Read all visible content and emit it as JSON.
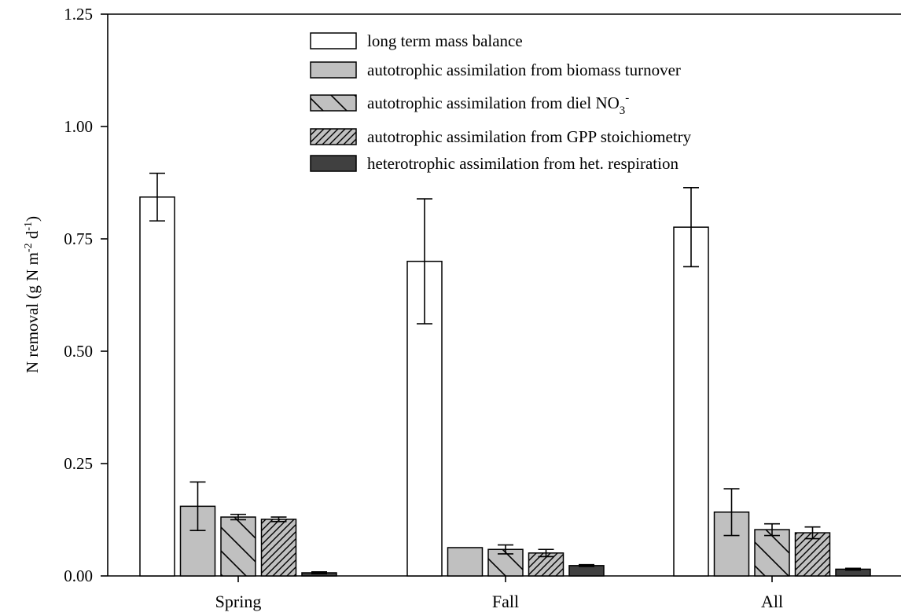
{
  "chart_data": {
    "type": "bar",
    "title": "",
    "xlabel": "",
    "ylabel": "N removal (g N m-2 d-1)",
    "ylim": [
      0,
      1.25
    ],
    "yticks": [
      "0.00",
      "0.25",
      "0.50",
      "0.75",
      "1.00",
      "1.25"
    ],
    "categories": [
      "Spring",
      "Fall",
      "All"
    ],
    "legend_position": "top-center",
    "grid": false,
    "series": [
      {
        "name": "long term mass balance",
        "fill": "#ffffff",
        "pattern": "none",
        "values": [
          0.843,
          0.7,
          0.776
        ],
        "errors": [
          0.053,
          0.139,
          0.088
        ]
      },
      {
        "name": "autotrophic assimilation from biomass turnover",
        "fill": "#c0c0c0",
        "pattern": "none",
        "values": [
          0.155,
          0.063,
          0.142
        ],
        "errors": [
          0.054,
          0.0,
          0.052
        ]
      },
      {
        "name": "autotrophic assimilation from diel NO3-",
        "fill": "#c0c0c0",
        "pattern": "back-diagonal",
        "values": [
          0.131,
          0.059,
          0.103
        ],
        "errors": [
          0.006,
          0.01,
          0.013
        ]
      },
      {
        "name": "autotrophic assimilation from GPP stoichiometry",
        "fill": "#c0c0c0",
        "pattern": "forward-diagonal",
        "values": [
          0.126,
          0.051,
          0.096
        ],
        "errors": [
          0.005,
          0.008,
          0.013
        ]
      },
      {
        "name": "heterotrophic assimilation from het. respiration",
        "fill": "#404040",
        "pattern": "none",
        "values": [
          0.007,
          0.023,
          0.015
        ],
        "errors": [
          0.002,
          0.002,
          0.002
        ]
      }
    ]
  },
  "legend_labels": {
    "s0": "long term mass balance",
    "s1": "autotrophic assimilation from biomass turnover",
    "s2": "autotrophic assimilation from diel NO",
    "s2_sub": "3",
    "s2_sup": "-",
    "s3": "autotrophic assimilation from GPP stoichiometry",
    "s4": "heterotrophic assimilation from het. respiration"
  },
  "axis_labels": {
    "ylabel_prefix": "N removal (g N m",
    "ylabel_sup1": "-2",
    "ylabel_mid": " d",
    "ylabel_sup2": "-1",
    "ylabel_suffix": ")"
  }
}
